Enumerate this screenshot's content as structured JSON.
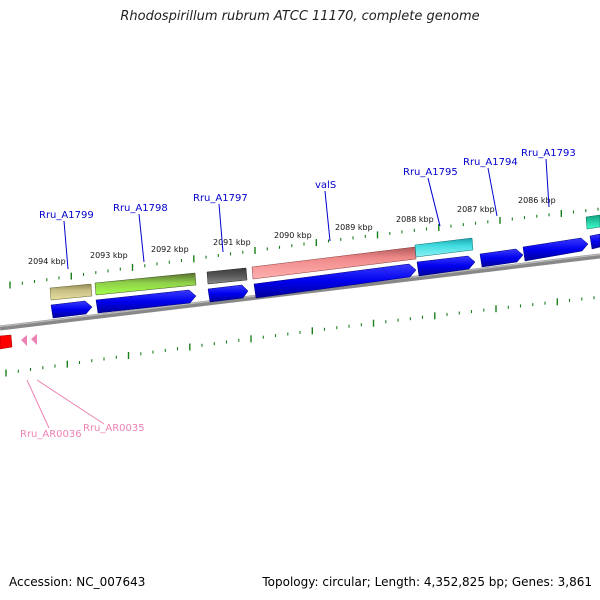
{
  "title": "Rhodospirillum rubrum ATCC 11170, complete genome",
  "accession": "Accession: NC_007643",
  "summary": "Topology: circular; Length: 4,352,825 bp; Genes: 3,861",
  "kbp_labels": [
    "2094 kbp",
    "2093 kbp",
    "2092 kbp",
    "2091 kbp",
    "2090 kbp",
    "2089 kbp",
    "2088 kbp",
    "2087 kbp",
    "2086 kbp"
  ],
  "gene_labels": [
    "Rru_A1799",
    "Rru_A1798",
    "Rru_A1797",
    "valS",
    "Rru_A1795",
    "Rru_A1794",
    "Rru_A1793"
  ],
  "rna_labels": [
    "Rru_AR0036",
    "Rru_AR0035"
  ],
  "colors": {
    "cds": "#0000ee",
    "tick": "#1a7f1a",
    "backbone": "#7a7a7a",
    "gene_label": "#0000cc",
    "rna": "#ee82b4",
    "trna": "#ff0000"
  }
}
